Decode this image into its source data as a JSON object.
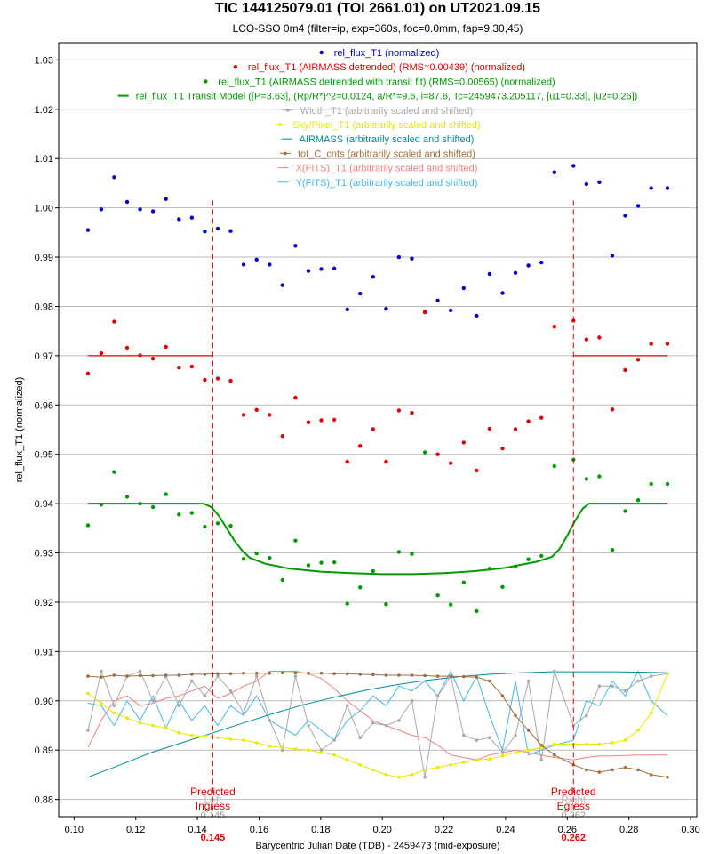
{
  "chart_data": {
    "type": "scatter",
    "title": "TIC 144125079.01 (TOI 2661.01)  on UT2021.09.15",
    "subtitle": "LCO-SSO 0m4 (filter=ip, exp=360s, foc=0.0mm, fap=9,30,45)",
    "xlabel": "Barycentric Julian Date (TDB) - 2459473 (mid-exposure)",
    "ylabel": "rel_flux_T1 (normalized)",
    "xlim": [
      0.095,
      0.302
    ],
    "ylim": [
      0.8765,
      1.0335
    ],
    "xticks": [
      0.1,
      0.12,
      0.14,
      0.16,
      0.18,
      0.2,
      0.22,
      0.24,
      0.26,
      0.28,
      0.3
    ],
    "xtick_labels": [
      "0.10",
      "0.12",
      "0.14",
      "0.16",
      "0.18",
      "0.20",
      "0.22",
      "0.24",
      "0.26",
      "0.28",
      "0.30"
    ],
    "yticks": [
      0.88,
      0.89,
      0.9,
      0.91,
      0.92,
      0.93,
      0.94,
      0.95,
      0.96,
      0.97,
      0.98,
      0.99,
      1.0,
      1.01,
      1.02,
      1.03
    ],
    "ytick_labels": [
      "0.88",
      "0.89",
      "0.90",
      "0.91",
      "0.92",
      "0.93",
      "0.94",
      "0.95",
      "0.96",
      "0.97",
      "0.98",
      "0.99",
      "1.00",
      "1.01",
      "1.02",
      "1.03"
    ],
    "grid": true,
    "legend_position": "top-center",
    "x": [
      0.1045,
      0.1088,
      0.113,
      0.1172,
      0.1214,
      0.1256,
      0.1298,
      0.134,
      0.1382,
      0.1424,
      0.1466,
      0.1508,
      0.155,
      0.1592,
      0.1634,
      0.1676,
      0.1718,
      0.176,
      0.1802,
      0.1844,
      0.1886,
      0.1928,
      0.197,
      0.2012,
      0.2054,
      0.2096,
      0.2138,
      0.218,
      0.2222,
      0.2264,
      0.2306,
      0.2348,
      0.239,
      0.2432,
      0.2474,
      0.2516,
      0.2558,
      0.262,
      0.2662,
      0.2704,
      0.2746,
      0.2788,
      0.283,
      0.2872,
      0.2925
    ],
    "series": [
      {
        "name": "rel_flux_T1 (normalized)",
        "color": "#0000cc",
        "kind": "points",
        "values": [
          0.9955,
          0.9997,
          1.0062,
          1.0012,
          0.9997,
          0.9993,
          1.0018,
          0.9977,
          0.998,
          0.9952,
          0.9958,
          0.9953,
          0.9885,
          0.9895,
          0.9885,
          0.9843,
          0.9923,
          0.9872,
          0.9876,
          0.9877,
          0.9794,
          0.9826,
          0.986,
          0.9795,
          0.99,
          0.9897,
          0.9789,
          0.9812,
          0.9792,
          0.9837,
          0.9781,
          0.9866,
          0.9827,
          0.9868,
          0.9883,
          0.9889,
          1.0072,
          1.0085,
          1.0048,
          1.0052,
          0.9903,
          0.9984,
          1.0004,
          1.004,
          1.004
        ]
      },
      {
        "name": "rel_flux_T1 (AIRMASS detrended) (RMS=0.00439) (normalized)",
        "color": "#dd0000",
        "kind": "points",
        "values": [
          0.9664,
          0.9705,
          0.9769,
          0.9716,
          0.9701,
          0.9694,
          0.9718,
          0.9676,
          0.9678,
          0.9651,
          0.9654,
          0.9649,
          0.958,
          0.959,
          0.958,
          0.9537,
          0.9615,
          0.9565,
          0.9569,
          0.957,
          0.9485,
          0.9517,
          0.9551,
          0.9485,
          0.9589,
          0.9584,
          0.9788,
          0.95,
          0.9482,
          0.9524,
          0.9467,
          0.9552,
          0.9512,
          0.9551,
          0.9567,
          0.9574,
          0.9759,
          0.9771,
          0.9733,
          0.9737,
          0.9591,
          0.9671,
          0.9692,
          0.9724,
          0.9724
        ]
      },
      {
        "name": "rel_flux_T1 (AIRMASS detrended with transit fit) (RMS=0.00565) (normalized)",
        "color": "#009900",
        "kind": "points",
        "values": [
          0.9356,
          0.9398,
          0.9464,
          0.9414,
          0.94,
          0.9393,
          0.9419,
          0.9378,
          0.9381,
          0.9353,
          0.936,
          0.9355,
          0.9288,
          0.9299,
          0.929,
          0.9245,
          0.9325,
          0.9275,
          0.928,
          0.9281,
          0.9197,
          0.923,
          0.9263,
          0.9196,
          0.9302,
          0.9298,
          0.9504,
          0.9214,
          0.9195,
          0.924,
          0.9182,
          0.9268,
          0.9231,
          0.9272,
          0.9287,
          0.9294,
          0.9476,
          0.9489,
          0.945,
          0.9455,
          0.9306,
          0.9385,
          0.9407,
          0.944,
          0.944
        ]
      },
      {
        "name": "rel_flux_T1 Transit Model ([P=3.63], (Rp/R*)^2=0.0124, a/R*=9.6, i=87.6, Tc=2459473.205117, [u1=0.33], [u2=0.26])",
        "color": "#009900",
        "kind": "line",
        "x": [
          0.1045,
          0.142,
          0.1445,
          0.147,
          0.1495,
          0.152,
          0.1545,
          0.157,
          0.162,
          0.17,
          0.18,
          0.19,
          0.2,
          0.21,
          0.22,
          0.23,
          0.24,
          0.25,
          0.255,
          0.2575,
          0.26,
          0.2625,
          0.265,
          0.267,
          0.2925
        ],
        "values": [
          0.94,
          0.94,
          0.9393,
          0.9375,
          0.935,
          0.9325,
          0.9305,
          0.929,
          0.9278,
          0.9268,
          0.9262,
          0.9259,
          0.9257,
          0.9257,
          0.9259,
          0.9263,
          0.927,
          0.9282,
          0.9292,
          0.9308,
          0.9335,
          0.9365,
          0.939,
          0.94,
          0.94
        ]
      },
      {
        "name": "Width_T1 (arbitrarily scaled and shifted)",
        "color": "#a8a8a8",
        "kind": "line-points",
        "values": [
          0.894,
          0.906,
          0.899,
          0.905,
          0.906,
          0.9,
          0.905,
          0.899,
          0.904,
          0.901,
          0.905,
          0.902,
          0.8975,
          0.905,
          0.896,
          0.89,
          0.905,
          0.895,
          0.89,
          0.892,
          0.899,
          0.8925,
          0.8955,
          0.895,
          0.896,
          0.9,
          0.8845,
          0.901,
          0.905,
          0.893,
          0.892,
          0.8925,
          0.8895,
          0.893,
          0.904,
          0.888,
          0.906,
          0.895,
          0.897,
          0.903,
          0.903,
          0.902,
          0.904,
          0.905,
          0.9055
        ]
      },
      {
        "name": "Sky/Pixel_T1 (arbitrarily scaled and shifted)",
        "color": "#e8e800",
        "kind": "line-points",
        "values": [
          0.9015,
          0.8995,
          0.8975,
          0.8965,
          0.8955,
          0.895,
          0.8945,
          0.8935,
          0.893,
          0.8928,
          0.8925,
          0.8922,
          0.892,
          0.8915,
          0.8908,
          0.8905,
          0.8902,
          0.89,
          0.8895,
          0.889,
          0.888,
          0.887,
          0.886,
          0.885,
          0.8845,
          0.885,
          0.886,
          0.8865,
          0.887,
          0.8875,
          0.888,
          0.8882,
          0.8888,
          0.8895,
          0.89,
          0.8905,
          0.8912,
          0.8912,
          0.8912,
          0.8912,
          0.8915,
          0.892,
          0.894,
          0.8975,
          0.9055
        ]
      },
      {
        "name": "AIRMASS (arbitrarily scaled and shifted)",
        "color": "#008b9b",
        "kind": "line",
        "x": [
          0.1045,
          0.115,
          0.125,
          0.135,
          0.145,
          0.155,
          0.165,
          0.175,
          0.185,
          0.195,
          0.205,
          0.215,
          0.225,
          0.235,
          0.245,
          0.255,
          0.265,
          0.275,
          0.285,
          0.2925
        ],
        "values": [
          0.8845,
          0.887,
          0.8895,
          0.8915,
          0.8935,
          0.8955,
          0.8975,
          0.8993,
          0.9008,
          0.9022,
          0.9033,
          0.9042,
          0.9049,
          0.9054,
          0.9057,
          0.9059,
          0.9059,
          0.9059,
          0.9058,
          0.9057
        ]
      },
      {
        "name": "tot_C_cnts (arbitrarily scaled and shifted)",
        "color": "#a0703c",
        "kind": "line-points",
        "values": [
          0.905,
          0.9048,
          0.9052,
          0.905,
          0.9051,
          0.9051,
          0.9052,
          0.9052,
          0.9054,
          0.9054,
          0.9055,
          0.9055,
          0.9056,
          0.9056,
          0.9056,
          0.9057,
          0.9057,
          0.9056,
          0.9056,
          0.9055,
          0.9055,
          0.9054,
          0.9053,
          0.9052,
          0.9052,
          0.9052,
          0.9051,
          0.905,
          0.905,
          0.9049,
          0.9048,
          0.904,
          0.901,
          0.897,
          0.894,
          0.891,
          0.889,
          0.887,
          0.886,
          0.8855,
          0.886,
          0.8865,
          0.886,
          0.885,
          0.8845
        ]
      },
      {
        "name": "X(FITS)_T1 (arbitrarily scaled and shifted)",
        "color": "#f08080",
        "kind": "line",
        "values": [
          0.8905,
          0.896,
          0.9,
          0.901,
          0.899,
          0.8995,
          0.9005,
          0.901,
          0.902,
          0.903,
          0.9005,
          0.9015,
          0.903,
          0.904,
          0.906,
          0.906,
          0.906,
          0.9055,
          0.9045,
          0.9025,
          0.9,
          0.898,
          0.896,
          0.895,
          0.894,
          0.893,
          0.8925,
          0.891,
          0.889,
          0.8885,
          0.888,
          0.889,
          0.8895,
          0.89,
          0.8895,
          0.889,
          0.8885,
          0.888,
          0.8885,
          0.8888,
          0.8888,
          0.8889,
          0.889,
          0.889,
          0.889
        ]
      },
      {
        "name": "Y(FITS)_T1 (arbitrarily scaled and shifted)",
        "color": "#40b8e8",
        "kind": "line",
        "values": [
          0.8995,
          0.899,
          0.895,
          0.9,
          0.896,
          0.901,
          0.8945,
          0.9,
          0.896,
          0.899,
          0.895,
          0.899,
          0.897,
          0.901,
          0.896,
          0.8945,
          0.893,
          0.896,
          0.894,
          0.892,
          0.896,
          0.898,
          0.901,
          0.899,
          0.903,
          0.902,
          0.904,
          0.901,
          0.906,
          0.9,
          0.905,
          0.897,
          0.89,
          0.904,
          0.889,
          0.89,
          0.891,
          0.892,
          0.9,
          0.899,
          0.904,
          0.901,
          0.906,
          0.9,
          0.897
        ]
      }
    ],
    "baseline_red": {
      "color": "#dd0000",
      "value": 0.97,
      "segments": [
        [
          0.1045,
          0.145
        ],
        [
          0.262,
          0.2925
        ]
      ]
    },
    "markers": [
      {
        "label1": "Predicted",
        "label2": "Left",
        "label3": "Ingress",
        "value_label": "0.145",
        "x": 0.145
      },
      {
        "label1": "Predicted",
        "label2": "Right",
        "label3": "Egress",
        "value_label": "0.262",
        "x": 0.262
      }
    ]
  }
}
